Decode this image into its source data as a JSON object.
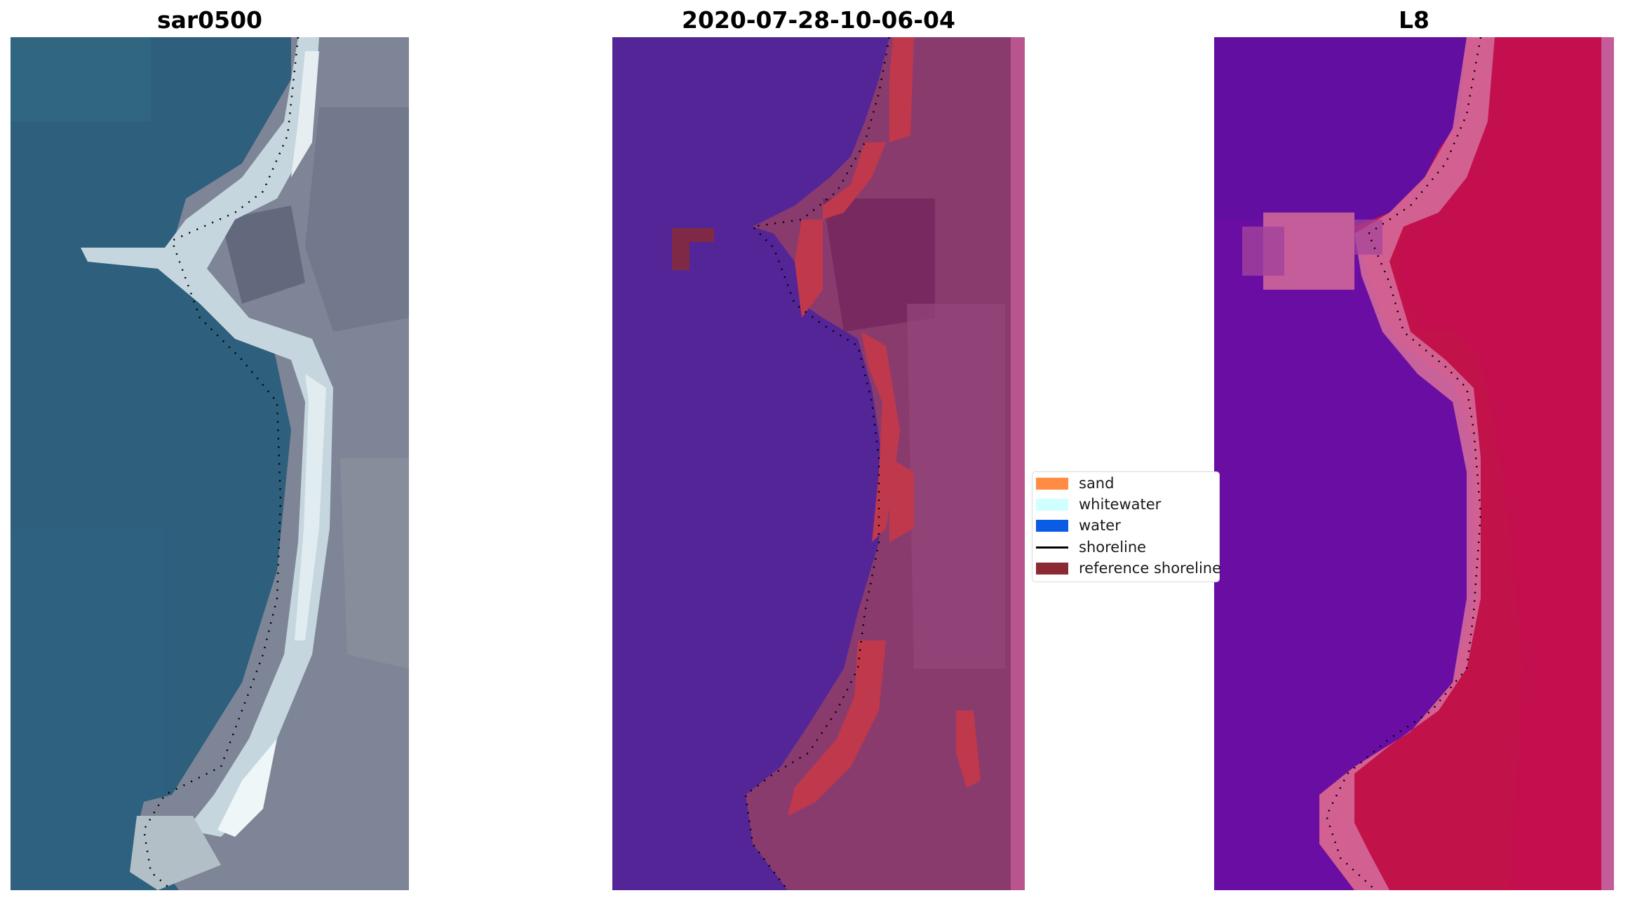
{
  "panels": [
    {
      "title": "sar0500",
      "image": "rgb-satellite-image"
    },
    {
      "title": "2020-07-28-10-06-04",
      "image": "classified-image-overlay"
    },
    {
      "title": "L8",
      "image": "mndwi-image"
    }
  ],
  "legend": {
    "items": [
      {
        "label": "sand",
        "color": "#ff8c42",
        "kind": "patch"
      },
      {
        "label": "whitewater",
        "color": "#cffffe",
        "kind": "patch"
      },
      {
        "label": "water",
        "color": "#0a5ce6",
        "kind": "patch"
      },
      {
        "label": "shoreline",
        "color": "#000000",
        "kind": "line"
      },
      {
        "label": "reference shoreline",
        "color": "#8b2a32",
        "kind": "patch"
      }
    ]
  },
  "colors": {
    "ocean": "#2e5f7c",
    "ocean_dark": "#2a5673",
    "sand_bright": "#cfe0e6",
    "land_grey": "#7c8393",
    "classified_water": "#532597",
    "classified_land": "#8a3b6e",
    "classified_ref": "#c0384c",
    "classified_edge": "#b8558e",
    "mndwi_water": "#6a0ea3",
    "mndwi_land": "#c2124a",
    "mndwi_mid": "#d46a9a"
  }
}
